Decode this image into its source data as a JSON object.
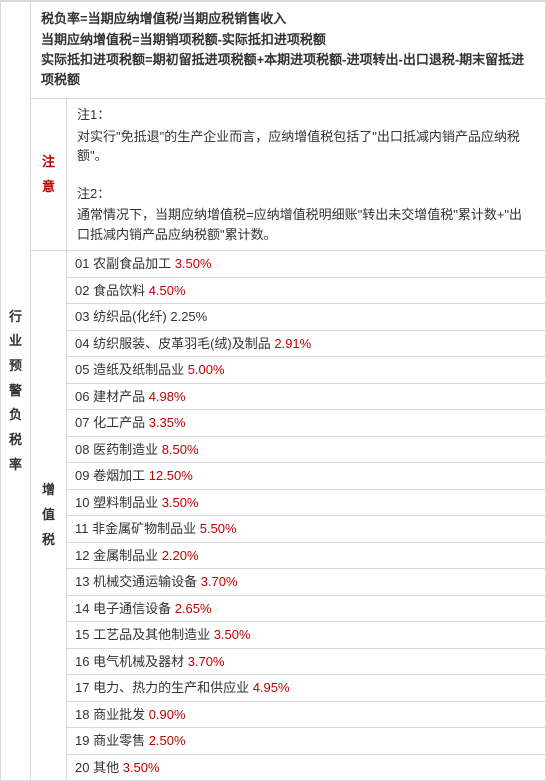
{
  "left_main_label": "行业预警负税率",
  "formula": {
    "lines": [
      "税负率=当期应纳增值税/当期应税销售收入",
      "当期应纳增值税=当期销项税额-实际抵扣进项税额",
      "实际抵扣进项税额=期初留抵进项税额+本期进项税额-进项转出-出口退税-期末留抵进项税额"
    ]
  },
  "notes": {
    "label": "注意",
    "n1_title": "注1：",
    "n1_body": "对实行\"免抵退\"的生产企业而言，应纳增值税包括了\"出口抵减内销产品应纳税额\"。",
    "n2_title": "注2：",
    "n2_body": "通常情况下，当期应纳增值税=应纳增值税明细账\"转出未交增值税\"累计数+\"出口抵减内销产品应纳税额\"累计数。"
  },
  "category_label": "增值税",
  "rows": [
    {
      "n": "01",
      "name": "农副食品加工",
      "rate": "3.50%",
      "hl": true
    },
    {
      "n": "02",
      "name": "食品饮料",
      "rate": "4.50%",
      "hl": true
    },
    {
      "n": "03",
      "name": "纺织品(化纤)",
      "rate": "2.25%",
      "hl": false
    },
    {
      "n": "04",
      "name": "纺织服装、皮革羽毛(绒)及制品",
      "rate": "2.91%",
      "hl": true
    },
    {
      "n": "05",
      "name": "造纸及纸制品业",
      "rate": "5.00%",
      "hl": true
    },
    {
      "n": "06",
      "name": "建材产品",
      "rate": "4.98%",
      "hl": true
    },
    {
      "n": "07",
      "name": "化工产品",
      "rate": "3.35%",
      "hl": true
    },
    {
      "n": "08",
      "name": "医药制造业",
      "rate": "8.50%",
      "hl": true
    },
    {
      "n": "09",
      "name": "卷烟加工",
      "rate": "12.50%",
      "hl": true
    },
    {
      "n": "10",
      "name": "塑料制品业",
      "rate": "3.50%",
      "hl": true
    },
    {
      "n": "11",
      "name": "非金属矿物制品业",
      "rate": "5.50%",
      "hl": true
    },
    {
      "n": "12",
      "name": "金属制品业",
      "rate": "2.20%",
      "hl": true
    },
    {
      "n": "13",
      "name": "机械交通运输设备",
      "rate": "3.70%",
      "hl": true
    },
    {
      "n": "14",
      "name": "电子通信设备",
      "rate": "2.65%",
      "hl": true
    },
    {
      "n": "15",
      "name": "工艺品及其他制造业",
      "rate": "3.50%",
      "hl": true
    },
    {
      "n": "16",
      "name": "电气机械及器材",
      "rate": "3.70%",
      "hl": true
    },
    {
      "n": "17",
      "name": "电力、热力的生产和供应业",
      "rate": "4.95%",
      "hl": true
    },
    {
      "n": "18",
      "name": "商业批发",
      "rate": "0.90%",
      "hl": true
    },
    {
      "n": "19",
      "name": "商业零售",
      "rate": "2.50%",
      "hl": true
    },
    {
      "n": "20",
      "name": "其他",
      "rate": "3.50%",
      "hl": true
    }
  ],
  "colors": {
    "highlight": "#c00000",
    "border": "#d9d9d9",
    "text": "#333333",
    "background": "#ffffff"
  }
}
